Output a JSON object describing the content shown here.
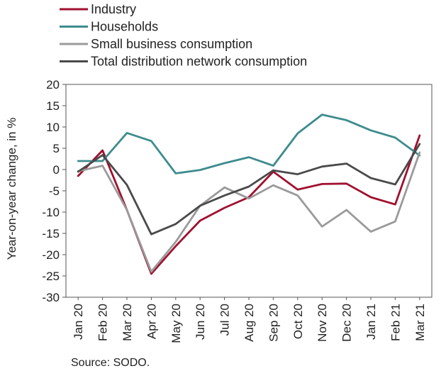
{
  "chart_data": {
    "type": "line",
    "ylabel": "Year-on-year change, in %",
    "ylim": [
      -30,
      20
    ],
    "yticks": [
      20,
      15,
      10,
      5,
      0,
      -5,
      -10,
      -15,
      -20,
      -25,
      -30
    ],
    "grid": false,
    "legend_position": "top-left",
    "categories": [
      "Jan 20",
      "Feb 20",
      "Mar 20",
      "Apr 20",
      "May 20",
      "Jun 20",
      "Jul 20",
      "Aug 20",
      "Sep 20",
      "Oct 20",
      "Nov 20",
      "Dec 20",
      "Jan 21",
      "Feb 21",
      "Mar 21"
    ],
    "series": [
      {
        "name": "Industry",
        "color": "#a0102e",
        "values": [
          -1.5,
          4.5,
          -9.5,
          -24.5,
          -18,
          -12,
          -9,
          -6.5,
          -0.5,
          -4.7,
          -3.4,
          -3.3,
          -6.5,
          -8.2,
          8
        ]
      },
      {
        "name": "Households",
        "color": "#3d8c8e",
        "values": [
          2,
          2,
          8.6,
          6.7,
          -0.9,
          -0.1,
          1.5,
          2.9,
          0.9,
          8.5,
          12.9,
          11.6,
          9.2,
          7.5,
          3.3
        ]
      },
      {
        "name": "Small business consumption",
        "color": "#9a9a9a",
        "values": [
          -0.4,
          0.9,
          -9.5,
          -24,
          -17,
          -8.5,
          -4.2,
          -6.8,
          -3.7,
          -6.1,
          -13.4,
          -9.5,
          -14.6,
          -12.2,
          4
        ]
      },
      {
        "name": "Total distribution network consumption",
        "color": "#4a4a4a",
        "values": [
          -0.5,
          3.4,
          -3.6,
          -15.2,
          -12.8,
          -8.5,
          -6.1,
          -4,
          -0.2,
          -1.1,
          0.7,
          1.4,
          -2,
          -3.5,
          6
        ]
      }
    ]
  },
  "source": "Source: SODO."
}
